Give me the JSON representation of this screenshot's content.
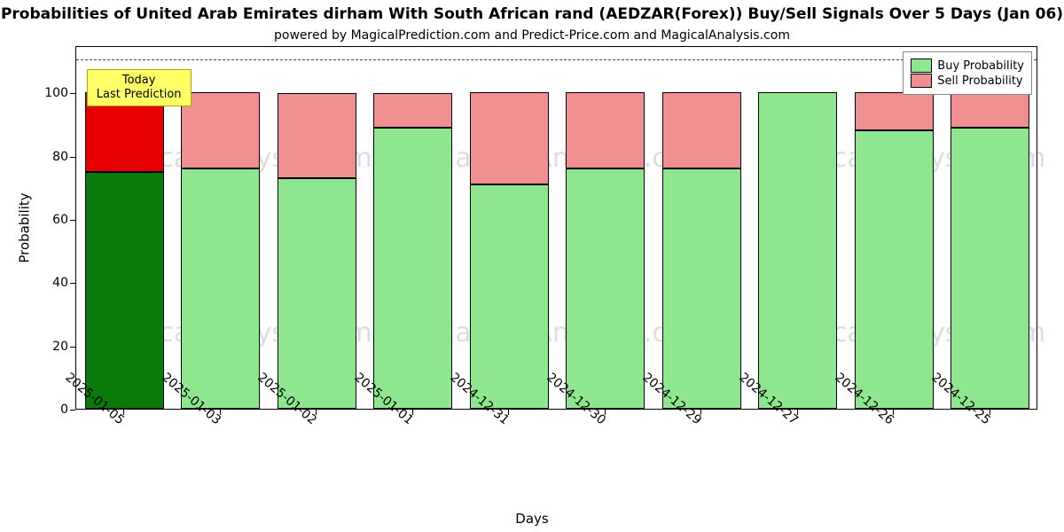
{
  "title": "Probabilities of United Arab Emirates dirham With South African rand (AEDZAR(Forex)) Buy/Sell Signals Over 5 Days (Jan 06)",
  "subtitle": "powered by MagicalPrediction.com and Predict-Price.com and MagicalAnalysis.com",
  "x_label": "Days",
  "y_label": "Probability",
  "chart": {
    "type": "stacked-bar",
    "background_color": "#ffffff",
    "plot_border_color": "#000000",
    "ylim": [
      0,
      115
    ],
    "ytick_step": 20,
    "yticks": [
      0,
      20,
      40,
      60,
      80,
      100
    ],
    "reference_line": {
      "y": 111,
      "style": "dashed",
      "color": "#444444"
    },
    "bar_width_ratio": 0.82,
    "categories": [
      "2025-01-05",
      "2025-01-03",
      "2025-01-02",
      "2025-01-01",
      "2024-12-31",
      "2024-12-30",
      "2024-12-29",
      "2024-12-27",
      "2024-12-26",
      "2024-12-25"
    ],
    "series": {
      "buy": {
        "label": "Buy Probability",
        "color": "#8ee78e",
        "highlight_color": "#0a7a0a"
      },
      "sell": {
        "label": "Sell Probability",
        "color": "#ef8f8f",
        "highlight_color": "#e60000"
      }
    },
    "data": [
      {
        "buy": 75,
        "sell": 25,
        "highlight": true
      },
      {
        "buy": 76,
        "sell": 24,
        "highlight": false
      },
      {
        "buy": 73,
        "sell": 27,
        "highlight": false
      },
      {
        "buy": 89,
        "sell": 11,
        "highlight": false
      },
      {
        "buy": 71,
        "sell": 29,
        "highlight": false
      },
      {
        "buy": 76,
        "sell": 24,
        "highlight": false
      },
      {
        "buy": 76,
        "sell": 24,
        "highlight": false
      },
      {
        "buy": 100,
        "sell": 0,
        "highlight": false
      },
      {
        "buy": 88,
        "sell": 12,
        "highlight": false
      },
      {
        "buy": 89,
        "sell": 11,
        "highlight": false
      }
    ],
    "annotation": {
      "line1": "Today",
      "line2": "Last Prediction",
      "background": "#ffff66",
      "border": "#aaaa00"
    },
    "legend_position": "top-right",
    "watermark_text": "MagicalAnalysis.com",
    "watermark_color": "rgba(120,120,120,0.25)",
    "watermark_fontsize": 30,
    "title_fontsize": 17,
    "subtitle_fontsize": 14,
    "label_fontsize": 15,
    "tick_fontsize": 14
  }
}
